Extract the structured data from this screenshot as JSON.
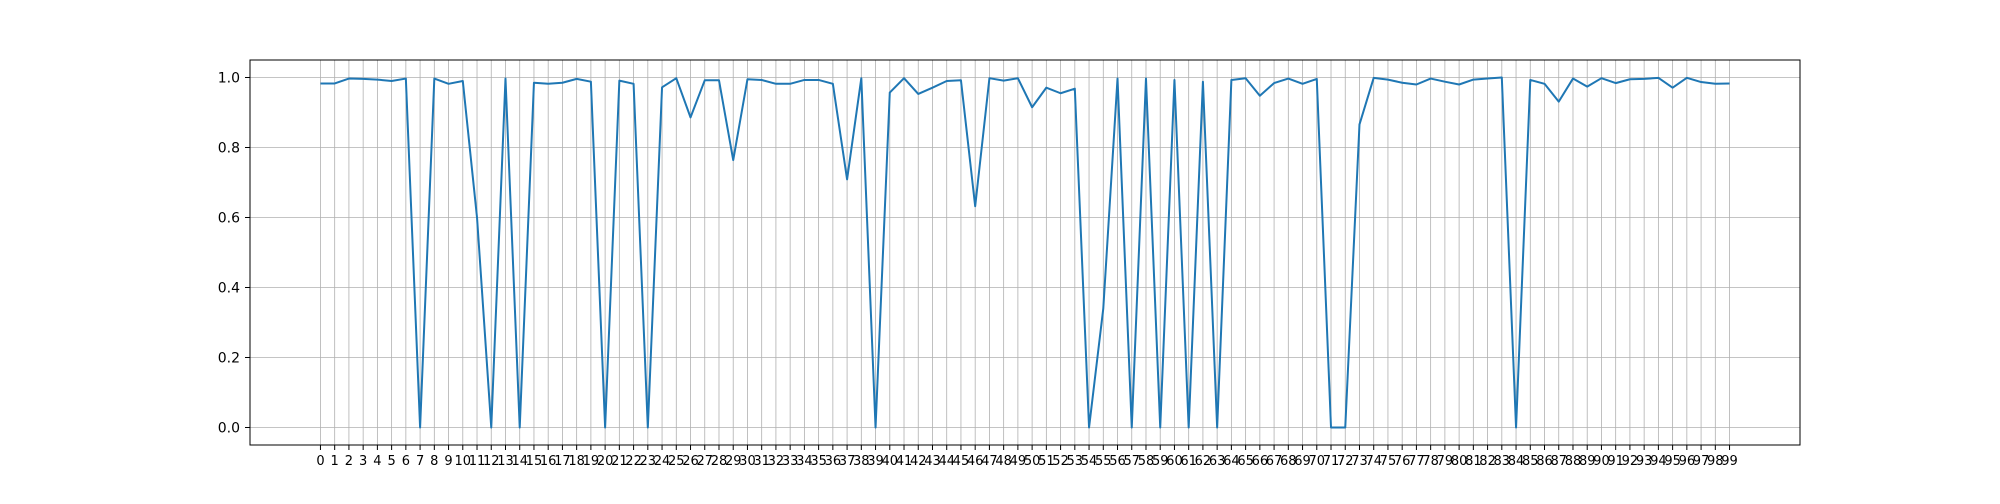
{
  "chart_data": {
    "type": "line",
    "title": "",
    "xlabel": "",
    "ylabel": "",
    "x": [
      0,
      1,
      2,
      3,
      4,
      5,
      6,
      7,
      8,
      9,
      10,
      11,
      12,
      13,
      14,
      15,
      16,
      17,
      18,
      19,
      20,
      21,
      22,
      23,
      24,
      25,
      26,
      27,
      28,
      29,
      30,
      31,
      32,
      33,
      34,
      35,
      36,
      37,
      38,
      39,
      40,
      41,
      42,
      43,
      44,
      45,
      46,
      47,
      48,
      49,
      50,
      51,
      52,
      53,
      54,
      55,
      56,
      57,
      58,
      59,
      60,
      61,
      62,
      63,
      64,
      65,
      66,
      67,
      68,
      69,
      70,
      71,
      72,
      73,
      74,
      75,
      76,
      77,
      78,
      79,
      80,
      81,
      82,
      83,
      84,
      85,
      86,
      87,
      88,
      89,
      90,
      91,
      92,
      93,
      94,
      95,
      96,
      97,
      98,
      99
    ],
    "xticks": [
      "0",
      "1",
      "2",
      "3",
      "4",
      "5",
      "6",
      "7",
      "8",
      "9",
      "10",
      "11",
      "12",
      "13",
      "14",
      "15",
      "16",
      "17",
      "18",
      "19",
      "20",
      "21",
      "22",
      "23",
      "24",
      "25",
      "26",
      "27",
      "28",
      "29",
      "30",
      "31",
      "32",
      "33",
      "34",
      "35",
      "36",
      "37",
      "38",
      "39",
      "40",
      "41",
      "42",
      "43",
      "44",
      "45",
      "46",
      "47",
      "48",
      "49",
      "50",
      "51",
      "52",
      "53",
      "54",
      "55",
      "56",
      "57",
      "58",
      "59",
      "60",
      "61",
      "62",
      "63",
      "64",
      "65",
      "66",
      "67",
      "68",
      "69",
      "70",
      "71",
      "72",
      "73",
      "74",
      "75",
      "76",
      "77",
      "78",
      "79",
      "80",
      "81",
      "82",
      "83",
      "84",
      "85",
      "86",
      "87",
      "88",
      "89",
      "90",
      "91",
      "92",
      "93",
      "94",
      "95",
      "96",
      "97",
      "98",
      "99"
    ],
    "xlim": [
      -4.95,
      103.95
    ],
    "ylim": [
      -0.05,
      1.05
    ],
    "yticks": [
      0.0,
      0.2,
      0.4,
      0.6,
      0.8,
      1.0
    ],
    "ytick_labels": [
      "0.0",
      "0.2",
      "0.4",
      "0.6",
      "0.8",
      "1.0"
    ],
    "grid": true,
    "series": [
      {
        "color": "#1f77b4",
        "values": [
          0.983,
          0.983,
          0.997,
          0.996,
          0.994,
          0.99,
          0.997,
          0.0,
          0.997,
          0.982,
          0.99,
          0.6,
          0.0,
          0.997,
          0.0,
          0.985,
          0.982,
          0.985,
          0.996,
          0.988,
          0.0,
          0.991,
          0.982,
          0.0,
          0.972,
          0.998,
          0.886,
          0.992,
          0.992,
          0.764,
          0.995,
          0.993,
          0.982,
          0.982,
          0.993,
          0.993,
          0.982,
          0.709,
          0.998,
          0.0,
          0.957,
          0.998,
          0.953,
          0.971,
          0.99,
          0.992,
          0.632,
          0.998,
          0.991,
          0.998,
          0.915,
          0.971,
          0.955,
          0.968,
          0.0,
          0.34,
          0.997,
          0.0,
          0.997,
          0.0,
          0.993,
          0.0,
          0.988,
          0.0,
          0.993,
          0.998,
          0.948,
          0.984,
          0.997,
          0.982,
          0.996,
          0.0,
          0.0,
          0.866,
          0.999,
          0.994,
          0.985,
          0.98,
          0.997,
          0.988,
          0.98,
          0.994,
          0.997,
          1.0,
          0.0,
          0.993,
          0.982,
          0.931,
          0.997,
          0.974,
          0.998,
          0.984,
          0.995,
          0.996,
          0.999,
          0.971,
          0.999,
          0.987,
          0.982,
          0.983
        ]
      }
    ]
  }
}
